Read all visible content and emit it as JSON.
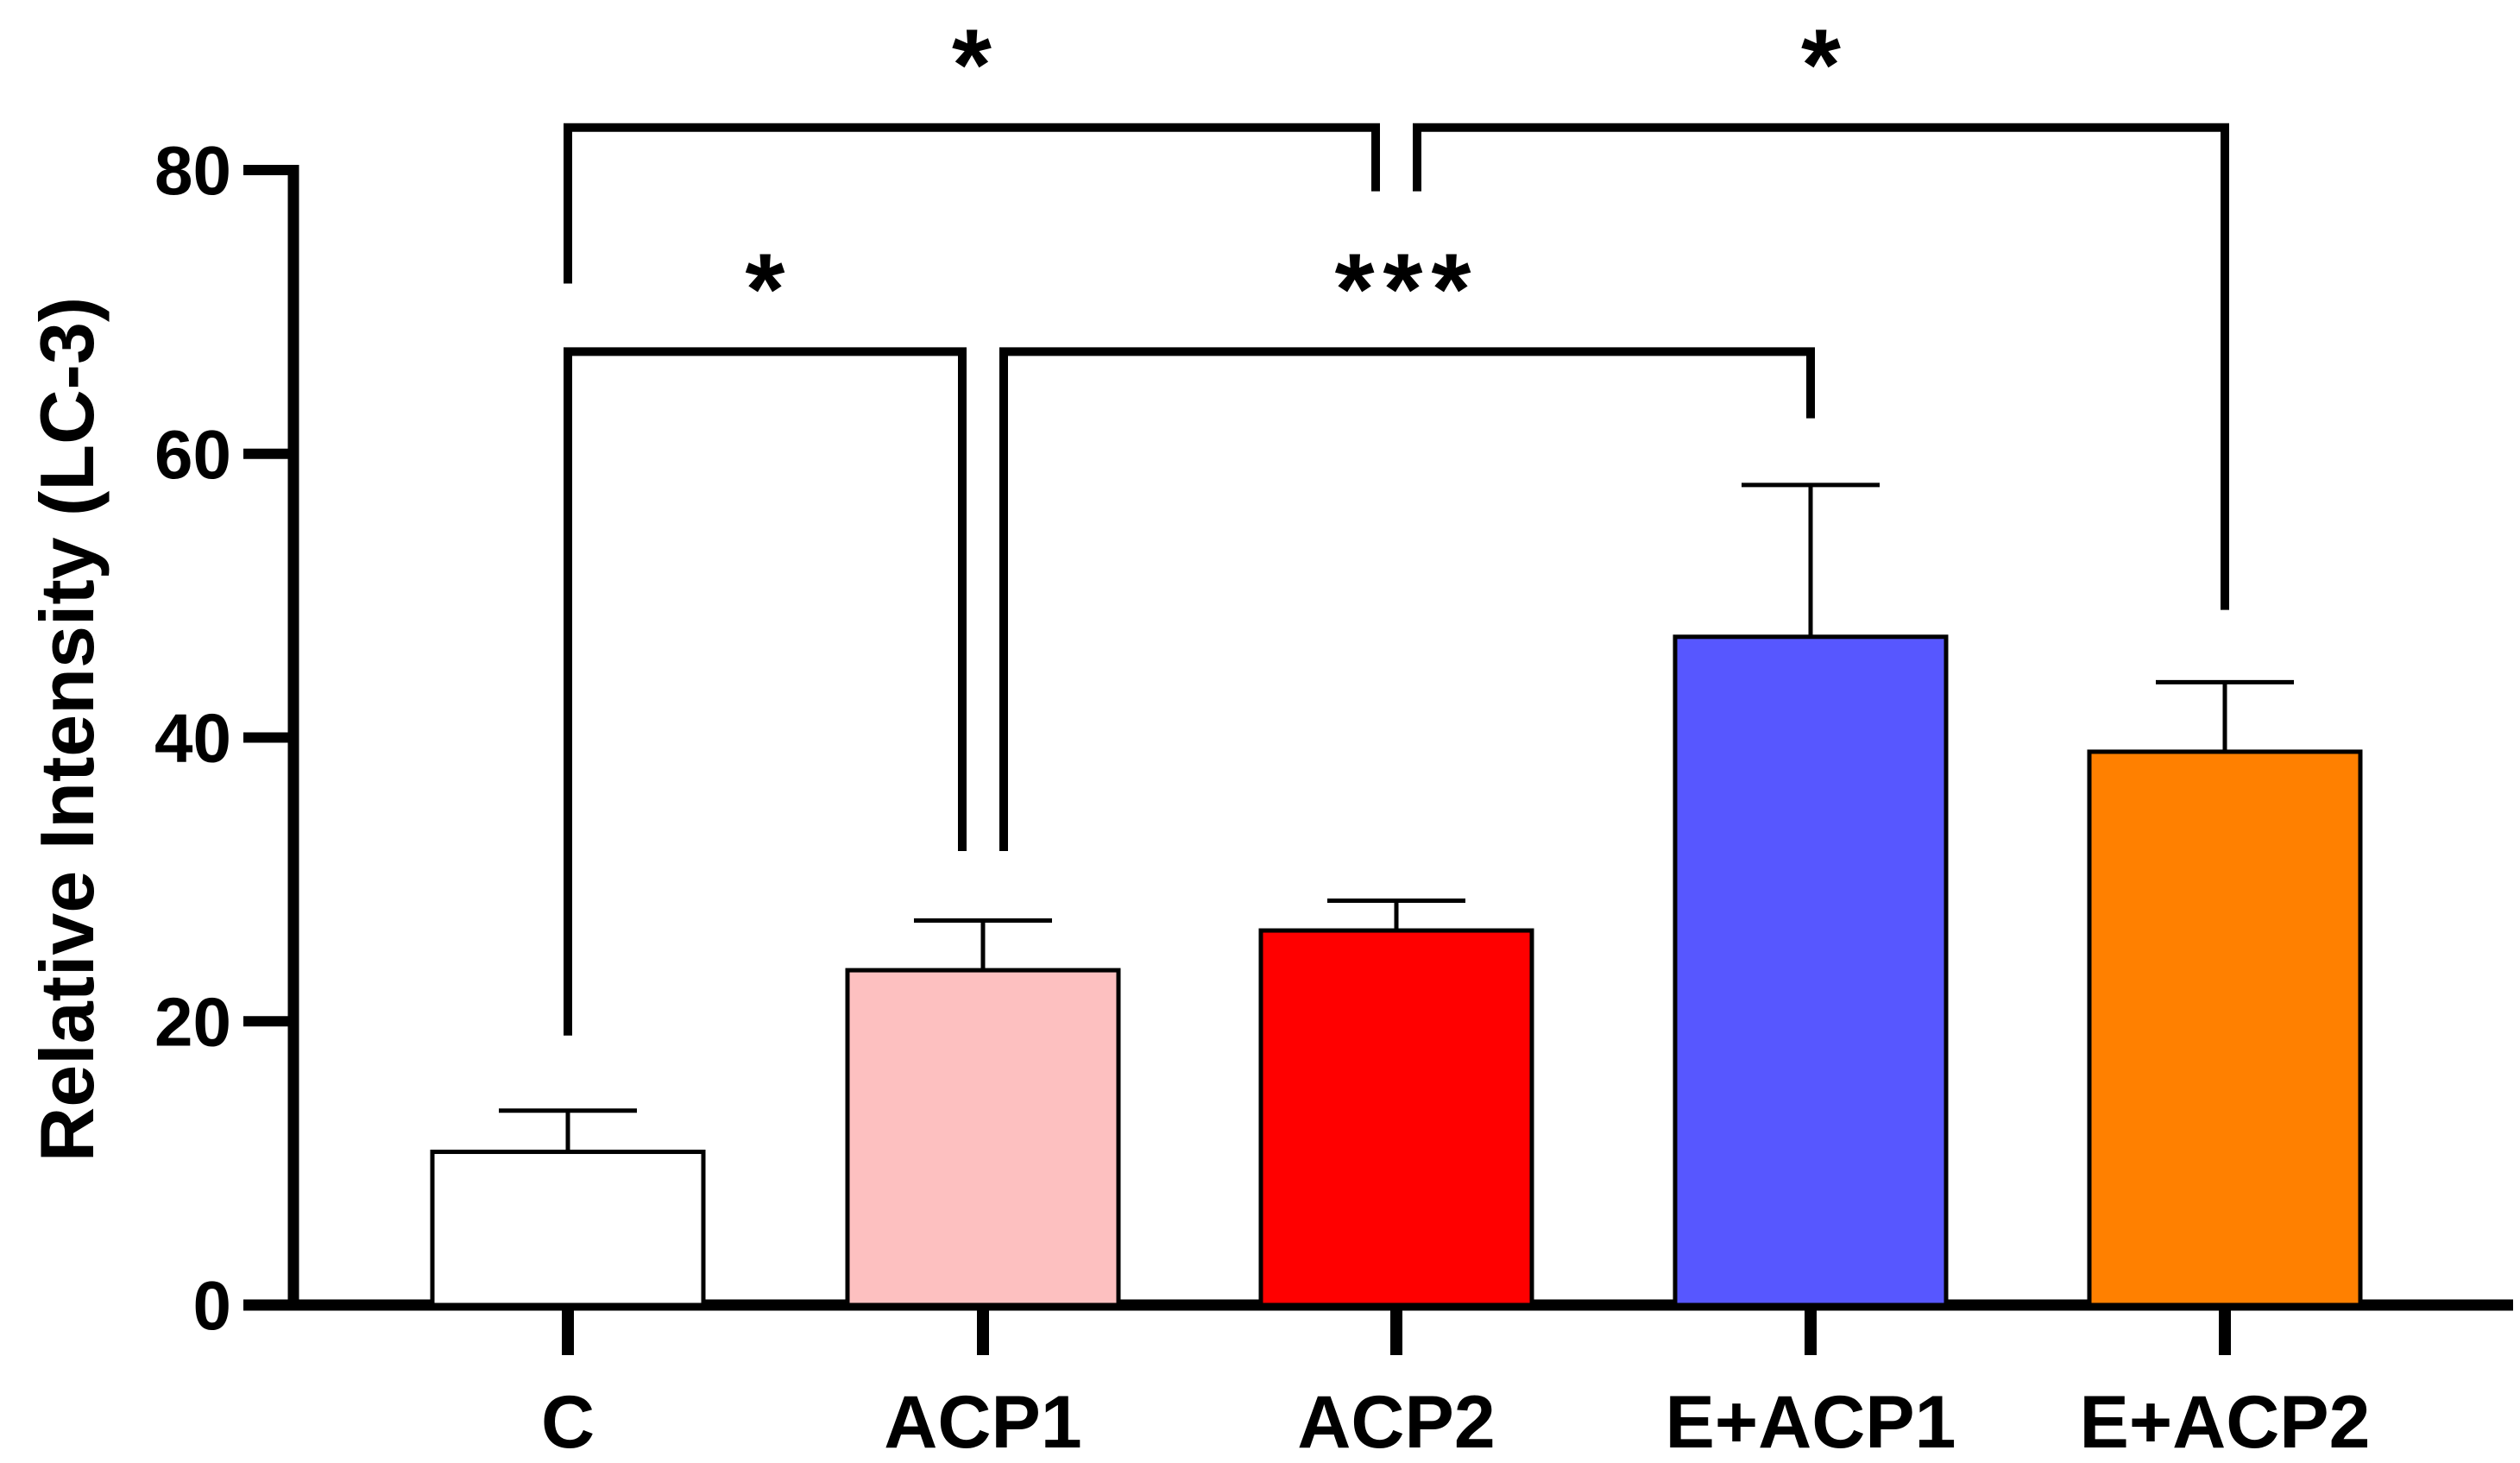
{
  "chart_data": {
    "type": "bar",
    "title": "",
    "xlabel": "",
    "ylabel": "Relative Intensity (LC-3)",
    "ylim": [
      0,
      80
    ],
    "yticks": [
      0,
      20,
      40,
      60,
      80
    ],
    "categories": [
      "C",
      "ACP1",
      "ACP2",
      "E+ACP1",
      "E+ACP2"
    ],
    "values": [
      10.8,
      23.6,
      26.4,
      47.1,
      39.0
    ],
    "errors": [
      2.9,
      3.5,
      2.1,
      10.7,
      4.9
    ],
    "colors": [
      "#ffffff",
      "#fdc0c0",
      "#ff0000",
      "#5757ff",
      "#ff8000"
    ],
    "grid": false,
    "legend": "none",
    "significance": [
      {
        "from": 0,
        "to": 1,
        "label": "*",
        "y": 67.2,
        "left_end": 19,
        "right_end": 32
      },
      {
        "from": 1,
        "to": 3,
        "label": "***",
        "y": 67.2,
        "left_end": 32,
        "right_end": 62.5
      },
      {
        "from": 0,
        "to": 2,
        "label": "*",
        "y": 83.0,
        "left_end": 72,
        "right_end": 78.5
      },
      {
        "from": 2,
        "to": 4,
        "label": "*",
        "y": 83.0,
        "left_end": 78.5,
        "right_end": 49
      }
    ]
  }
}
